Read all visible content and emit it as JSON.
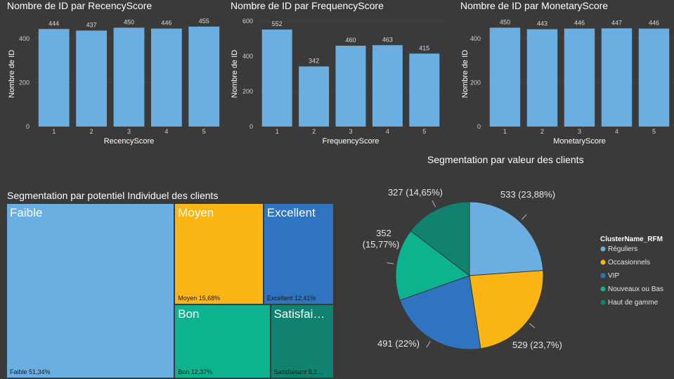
{
  "bar_charts": [
    {
      "title": "Nombre de ID par RecencyScore",
      "xlabel": "RecencyScore",
      "ylabel": "Nombre de ID",
      "categories": [
        "1",
        "2",
        "3",
        "4",
        "5"
      ],
      "values": [
        444,
        437,
        450,
        446,
        455
      ],
      "ylim": [
        0,
        480
      ],
      "yticks": [
        0,
        200,
        400
      ]
    },
    {
      "title": "Nombre de ID par FrequencyScore",
      "xlabel": "FrequencyScore",
      "ylabel": "Nombre de ID",
      "categories": [
        "1",
        "2",
        "3",
        "4",
        "5"
      ],
      "values": [
        552,
        342,
        460,
        463,
        415
      ],
      "ylim": [
        0,
        600
      ],
      "yticks": [
        0,
        200,
        400,
        600
      ]
    },
    {
      "title": "Nombre de ID par MonetaryScore",
      "xlabel": "MonetaryScore",
      "ylabel": "Nombre de ID",
      "categories": [
        "1",
        "2",
        "3",
        "4",
        "5"
      ],
      "values": [
        450,
        443,
        446,
        447,
        446
      ],
      "ylim": [
        0,
        480
      ],
      "yticks": [
        0,
        200,
        400
      ]
    }
  ],
  "treemap": {
    "title": "Segmentation par potentiel Individuel des clients",
    "cells": [
      {
        "name": "Faible",
        "label": "Faible 51,34%",
        "value": 51.34,
        "color": "#6aaee2"
      },
      {
        "name": "Moyen",
        "label": "Moyen 15,68%",
        "value": 15.68,
        "color": "#fbb515"
      },
      {
        "name": "Excellent",
        "label": "Excellent 12,41%",
        "value": 12.41,
        "color": "#2e74c0"
      },
      {
        "name": "Bon",
        "label": "Bon 12,37%",
        "value": 12.37,
        "color": "#0db38f"
      },
      {
        "name": "Satisfai…",
        "label": "Satisfaisant 8,2…",
        "value": 8.2,
        "color": "#128270"
      }
    ]
  },
  "pie": {
    "title": "Segmentation par valeur des clients",
    "legend_title": "ClusterName_RFM",
    "slices": [
      {
        "name": "Réguliers",
        "value": 533,
        "label": "533 (23,88%)",
        "color": "#6aaee2"
      },
      {
        "name": "Occasionnels",
        "value": 529,
        "label": "529 (23,7%)",
        "color": "#fbb515"
      },
      {
        "name": "VIP",
        "value": 491,
        "label": "491 (22%)",
        "color": "#2e74c0"
      },
      {
        "name": "Nouveaux ou Bas",
        "value": 352,
        "label_line1": "352",
        "label_line2": "(15,77%)",
        "color": "#0db38f"
      },
      {
        "name": "Haut de gamme",
        "value": 327,
        "label": "327 (14,65%)",
        "color": "#128270"
      }
    ]
  },
  "chart_data": [
    {
      "type": "bar",
      "title": "Nombre de ID par RecencyScore",
      "categories": [
        "1",
        "2",
        "3",
        "4",
        "5"
      ],
      "values": [
        444,
        437,
        450,
        446,
        455
      ],
      "xlabel": "RecencyScore",
      "ylabel": "Nombre de ID"
    },
    {
      "type": "bar",
      "title": "Nombre de ID par FrequencyScore",
      "categories": [
        "1",
        "2",
        "3",
        "4",
        "5"
      ],
      "values": [
        552,
        342,
        460,
        463,
        415
      ],
      "xlabel": "FrequencyScore",
      "ylabel": "Nombre de ID"
    },
    {
      "type": "bar",
      "title": "Nombre de ID par MonetaryScore",
      "categories": [
        "1",
        "2",
        "3",
        "4",
        "5"
      ],
      "values": [
        450,
        443,
        446,
        447,
        446
      ],
      "xlabel": "MonetaryScore",
      "ylabel": "Nombre de ID"
    },
    {
      "type": "treemap",
      "title": "Segmentation par potentiel Individuel des clients",
      "categories": [
        "Faible",
        "Moyen",
        "Excellent",
        "Bon",
        "Satisfaisant"
      ],
      "values": [
        51.34,
        15.68,
        12.41,
        12.37,
        8.2
      ]
    },
    {
      "type": "pie",
      "title": "Segmentation par valeur des clients",
      "categories": [
        "Réguliers",
        "Occasionnels",
        "VIP",
        "Nouveaux ou Bas",
        "Haut de gamme"
      ],
      "values": [
        533,
        529,
        491,
        352,
        327
      ],
      "legend": "right"
    }
  ]
}
